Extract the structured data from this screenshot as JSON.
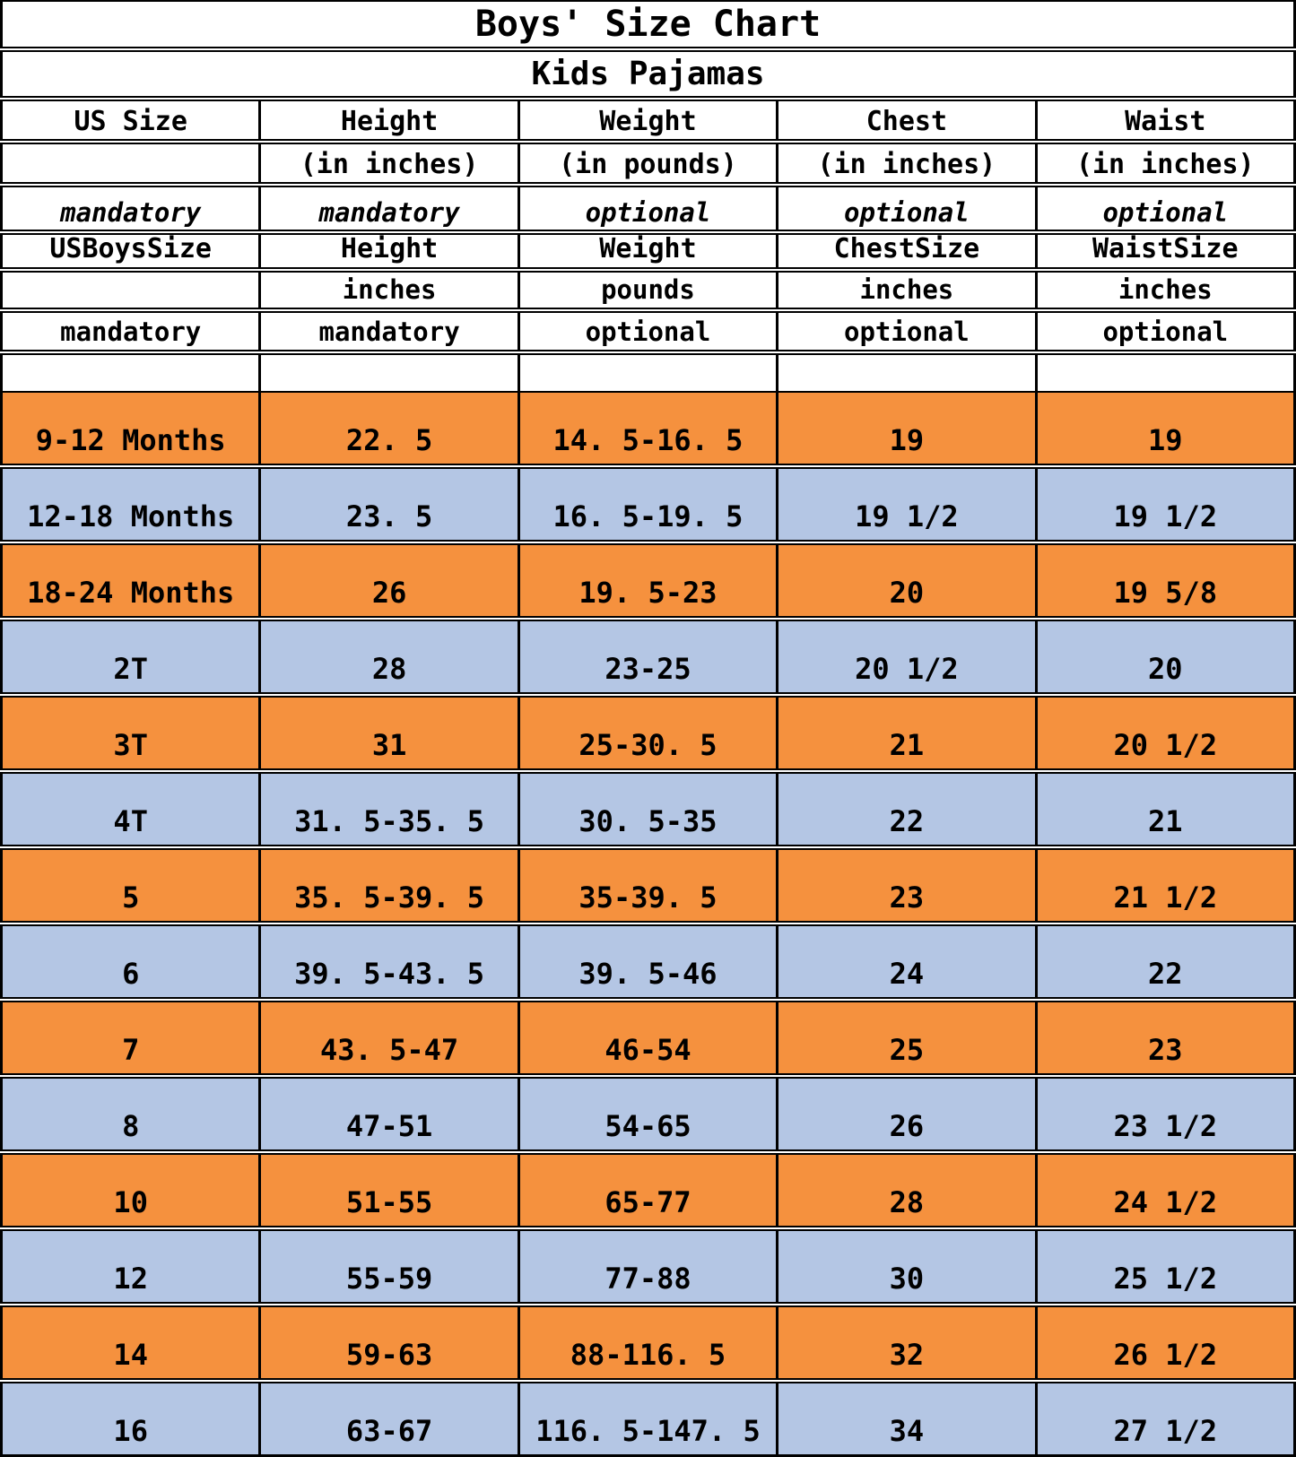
{
  "title": "Boys' Size Chart",
  "subtitle": "Kids Pajamas",
  "colors": {
    "row_orange": "#F5913E",
    "row_blue": "#B4C6E4",
    "grid": "#000000",
    "page_bg": "#FFFFFF",
    "text": "#000000"
  },
  "table": {
    "header_rows": [
      {
        "kind": "column-names",
        "cells": [
          "US Size",
          "Height",
          "Weight",
          "Chest",
          "Waist"
        ]
      },
      {
        "kind": "units-parenthetical",
        "cells": [
          "",
          "(in inches)",
          "(in pounds)",
          "(in inches)",
          "(in inches)"
        ]
      },
      {
        "kind": "requirement-italic",
        "cells": [
          "mandatory",
          "mandatory",
          "optional",
          "optional",
          "optional"
        ]
      },
      {
        "kind": "column-names-alt",
        "cells": [
          "USBoysSize",
          "Height",
          "Weight",
          "ChestSize",
          "WaistSize"
        ]
      },
      {
        "kind": "units",
        "cells": [
          "",
          "inches",
          "pounds",
          "inches",
          "inches"
        ]
      },
      {
        "kind": "requirement",
        "cells": [
          "mandatory",
          "mandatory",
          "optional",
          "optional",
          "optional"
        ]
      },
      {
        "kind": "spacer",
        "cells": [
          "",
          "",
          "",
          "",
          ""
        ]
      }
    ],
    "data_rows": [
      {
        "fill": "orange",
        "cells": [
          "9-12 Months",
          "22. 5",
          "14. 5-16. 5",
          "19",
          "19"
        ]
      },
      {
        "fill": "blue",
        "cells": [
          "12-18 Months",
          "23. 5",
          "16. 5-19. 5",
          "19 1/2",
          "19 1/2"
        ]
      },
      {
        "fill": "orange",
        "cells": [
          "18-24 Months",
          "26",
          "19. 5-23",
          "20",
          "19 5/8"
        ]
      },
      {
        "fill": "blue",
        "cells": [
          "2T",
          "28",
          "23-25",
          "20 1/2",
          "20"
        ]
      },
      {
        "fill": "orange",
        "cells": [
          "3T",
          "31",
          "25-30. 5",
          "21",
          "20 1/2"
        ]
      },
      {
        "fill": "blue",
        "cells": [
          "4T",
          "31. 5-35. 5",
          "30. 5-35",
          "22",
          "21"
        ]
      },
      {
        "fill": "orange",
        "cells": [
          "5",
          "35. 5-39. 5",
          "35-39. 5",
          "23",
          "21 1/2"
        ]
      },
      {
        "fill": "blue",
        "cells": [
          "6",
          "39. 5-43. 5",
          "39. 5-46",
          "24",
          "22"
        ]
      },
      {
        "fill": "orange",
        "cells": [
          "7",
          "43. 5-47",
          "46-54",
          "25",
          "23"
        ]
      },
      {
        "fill": "blue",
        "cells": [
          "8",
          "47-51",
          "54-65",
          "26",
          "23 1/2"
        ]
      },
      {
        "fill": "orange",
        "cells": [
          "10",
          "51-55",
          "65-77",
          "28",
          "24 1/2"
        ]
      },
      {
        "fill": "blue",
        "cells": [
          "12",
          "55-59",
          "77-88",
          "30",
          "25 1/2"
        ]
      },
      {
        "fill": "orange",
        "cells": [
          "14",
          "59-63",
          "88-116. 5",
          "32",
          "26 1/2"
        ]
      },
      {
        "fill": "blue",
        "cells": [
          "16",
          "63-67",
          "116. 5-147. 5",
          "34",
          "27 1/2"
        ]
      }
    ]
  },
  "chart_data": {
    "type": "table",
    "title": "Boys' Size Chart",
    "subtitle": "Kids Pajamas",
    "columns": [
      "US Size",
      "Height (in inches)",
      "Weight (in pounds)",
      "Chest (in inches)",
      "Waist (in inches)"
    ],
    "column_alt_names": [
      "USBoysSize",
      "Height inches",
      "Weight pounds",
      "ChestSize inches",
      "WaistSize inches"
    ],
    "column_requirement": [
      "mandatory",
      "mandatory",
      "optional",
      "optional",
      "optional"
    ],
    "rows": [
      [
        "9-12 Months",
        "22.5",
        "14.5-16.5",
        "19",
        "19"
      ],
      [
        "12-18 Months",
        "23.5",
        "16.5-19.5",
        "19 1/2",
        "19 1/2"
      ],
      [
        "18-24 Months",
        "26",
        "19.5-23",
        "20",
        "19 5/8"
      ],
      [
        "2T",
        "28",
        "23-25",
        "20 1/2",
        "20"
      ],
      [
        "3T",
        "31",
        "25-30.5",
        "21",
        "20 1/2"
      ],
      [
        "4T",
        "31.5-35.5",
        "30.5-35",
        "22",
        "21"
      ],
      [
        "5",
        "35.5-39.5",
        "35-39.5",
        "23",
        "21 1/2"
      ],
      [
        "6",
        "39.5-43.5",
        "39.5-46",
        "24",
        "22"
      ],
      [
        "7",
        "43.5-47",
        "46-54",
        "25",
        "23"
      ],
      [
        "8",
        "47-51",
        "54-65",
        "26",
        "23 1/2"
      ],
      [
        "10",
        "51-55",
        "65-77",
        "28",
        "24 1/2"
      ],
      [
        "12",
        "55-59",
        "77-88",
        "30",
        "25 1/2"
      ],
      [
        "14",
        "59-63",
        "88-116.5",
        "32",
        "26 1/2"
      ],
      [
        "16",
        "63-67",
        "116.5-147.5",
        "34",
        "27 1/2"
      ]
    ],
    "row_fill_pattern": [
      "orange",
      "blue"
    ],
    "layout": "bordered grid, double-line horizontal separators, bottom-aligned cell text"
  }
}
